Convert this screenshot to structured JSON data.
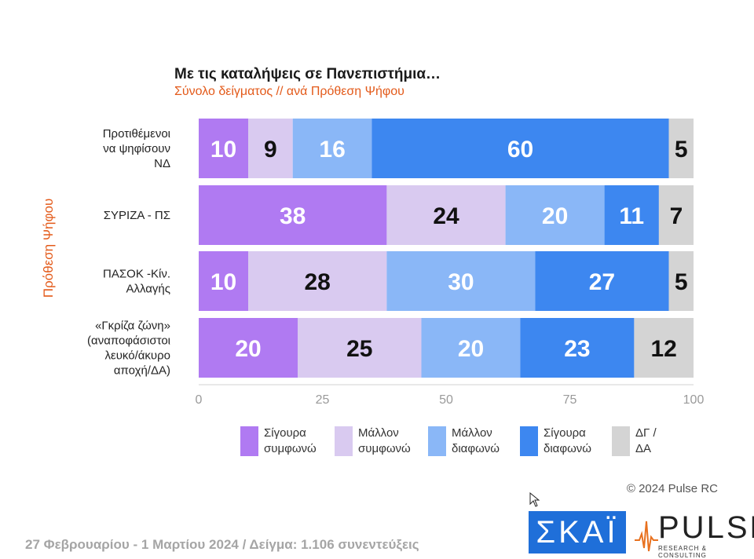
{
  "chart_data": {
    "type": "bar",
    "orientation": "horizontal",
    "stacked": true,
    "title": "Με τις καταλήψεις σε Πανεπιστήμια…",
    "subtitle": "Σύνολο δείγματος // ανά Πρόθεση Ψήφου",
    "ylabel": "Πρόθεση Ψήφου",
    "xlim": [
      0,
      100
    ],
    "xticks": [
      "0",
      "25",
      "50",
      "75",
      "100"
    ],
    "categories": [
      "Προτιθέμενοι\nνα ψηφίσουν\nΝΔ",
      "ΣΥΡΙΖΑ - ΠΣ",
      "ΠΑΣΟΚ -Κίν.\nΑλλαγής",
      "«Γκρίζα ζώνη»\n(αναποφάσιστοι\nλευκό/άκυρο\nαποχή/ΔΑ)"
    ],
    "series": [
      {
        "name": "Σίγουρα\nσυμφωνώ",
        "color": "#b07af2",
        "label_color": "#ffffff",
        "values": [
          10,
          38,
          10,
          20
        ]
      },
      {
        "name": "Μάλλον\nσυμφωνώ",
        "color": "#d9caf0",
        "label_color": "#111111",
        "values": [
          9,
          24,
          28,
          25
        ]
      },
      {
        "name": "Μάλλον\nδιαφωνώ",
        "color": "#8ab7f7",
        "label_color": "#ffffff",
        "values": [
          16,
          20,
          30,
          20
        ]
      },
      {
        "name": "Σίγουρα\nδιαφωνώ",
        "color": "#3d87f0",
        "label_color": "#ffffff",
        "values": [
          60,
          11,
          27,
          23
        ]
      },
      {
        "name": "ΔΓ /\nΔΑ",
        "color": "#d4d4d4",
        "label_color": "#111111",
        "values": [
          5,
          7,
          5,
          12
        ]
      }
    ],
    "legend_position": "bottom",
    "grid": false
  },
  "copyright": "© 2024 Pulse RC",
  "footer": "27 Φεβρουαρίου - 1 Μαρτίου 2024  /  Δείγμα:  1.106 συνεντεύξεις",
  "logos": {
    "skai": "ΣΚΑΪ",
    "pulse": "PULSE",
    "pulse_sub": "RESEARCH & CONSULTING"
  }
}
